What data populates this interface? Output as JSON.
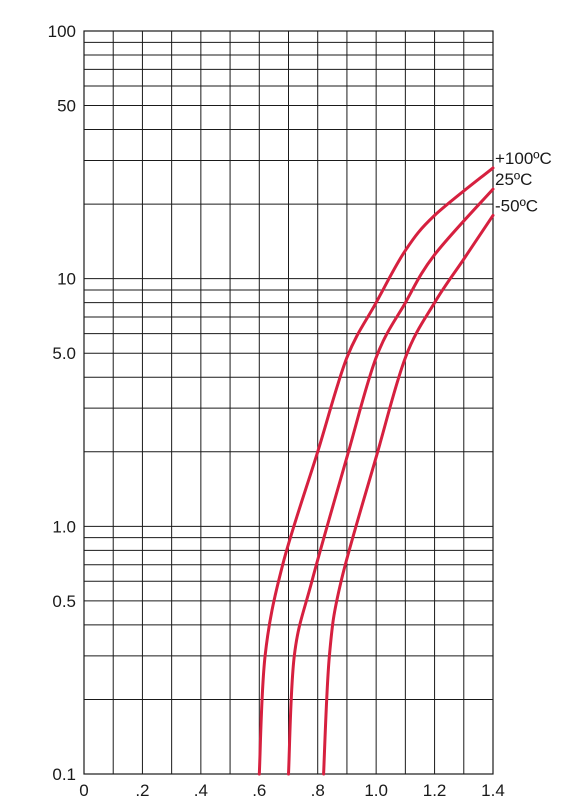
{
  "chart_data": {
    "type": "line",
    "title": "",
    "xlabel": "",
    "ylabel": "",
    "xlim": [
      0,
      1.4
    ],
    "ylim": [
      0.1,
      100
    ],
    "yscale": "log",
    "grid": true,
    "x_ticks": [
      {
        "value": 0,
        "label": "0"
      },
      {
        "value": 0.2,
        "label": ".2"
      },
      {
        "value": 0.4,
        "label": ".4"
      },
      {
        "value": 0.6,
        "label": ".6"
      },
      {
        "value": 0.8,
        "label": ".8"
      },
      {
        "value": 1.0,
        "label": "1.0"
      },
      {
        "value": 1.2,
        "label": "1.2"
      },
      {
        "value": 1.4,
        "label": "1.4"
      }
    ],
    "y_ticks": [
      {
        "value": 0.1,
        "label": "0.1"
      },
      {
        "value": 0.5,
        "label": "0.5"
      },
      {
        "value": 1,
        "label": "1.0"
      },
      {
        "value": 5,
        "label": "5.0"
      },
      {
        "value": 10,
        "label": "10"
      },
      {
        "value": 50,
        "label": "50"
      },
      {
        "value": 100,
        "label": "100"
      }
    ],
    "series": [
      {
        "name": "+100ºC",
        "color": "#d6203f",
        "points": [
          [
            0.6,
            0.1
          ],
          [
            0.62,
            0.3
          ],
          [
            0.68,
            0.7
          ],
          [
            0.8,
            2.0
          ],
          [
            0.9,
            4.8
          ],
          [
            1.0,
            8.0
          ],
          [
            1.1,
            13.0
          ],
          [
            1.2,
            18.0
          ],
          [
            1.4,
            28.0
          ]
        ]
      },
      {
        "name": "25ºC",
        "color": "#d6203f",
        "points": [
          [
            0.7,
            0.1
          ],
          [
            0.72,
            0.3
          ],
          [
            0.78,
            0.6
          ],
          [
            0.9,
            1.9
          ],
          [
            1.0,
            4.8
          ],
          [
            1.1,
            8.0
          ],
          [
            1.2,
            12.5
          ],
          [
            1.4,
            23.0
          ]
        ]
      },
      {
        "name": "-50ºC",
        "color": "#d6203f",
        "points": [
          [
            0.82,
            0.1
          ],
          [
            0.84,
            0.3
          ],
          [
            0.88,
            0.6
          ],
          [
            1.0,
            1.9
          ],
          [
            1.1,
            4.8
          ],
          [
            1.2,
            8.0
          ],
          [
            1.3,
            12.0
          ],
          [
            1.4,
            18.0
          ]
        ]
      }
    ]
  }
}
